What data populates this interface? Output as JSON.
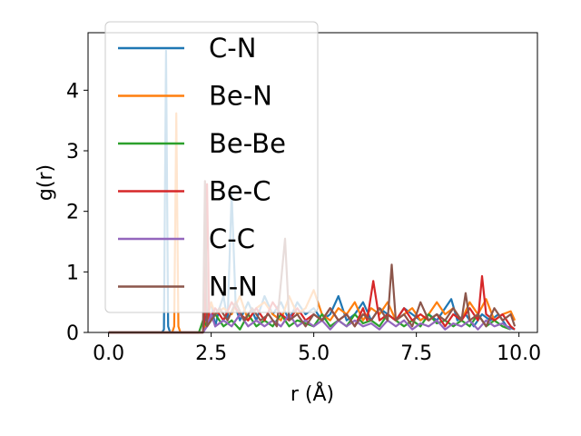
{
  "chart_data": {
    "type": "line",
    "xlabel": "r (Å)",
    "ylabel": "g(r)",
    "xlim": [
      -0.5,
      10.45
    ],
    "ylim": [
      0,
      4.95
    ],
    "xticks": [
      0.0,
      2.5,
      5.0,
      7.5,
      10.0
    ],
    "xtick_labels": [
      "0.0",
      "2.5",
      "5.0",
      "7.5",
      "10.0"
    ],
    "yticks": [
      0,
      1,
      2,
      3,
      4
    ],
    "ytick_labels": [
      "0",
      "1",
      "2",
      "3",
      "4"
    ],
    "grid": false,
    "legend_position": "upper left",
    "series": [
      {
        "name": "C-N",
        "color": "#1f77b4",
        "points": [
          [
            0,
            0
          ],
          [
            1.3,
            0
          ],
          [
            1.35,
            0.05
          ],
          [
            1.4,
            4.65
          ],
          [
            1.45,
            0.1
          ],
          [
            1.5,
            0
          ],
          [
            2.3,
            0
          ],
          [
            2.4,
            0.3
          ],
          [
            2.5,
            0.5
          ],
          [
            2.6,
            0.1
          ],
          [
            2.7,
            0.4
          ],
          [
            2.8,
            0.6
          ],
          [
            2.9,
            0.2
          ],
          [
            3.0,
            2.3
          ],
          [
            3.1,
            0.4
          ],
          [
            3.2,
            0.2
          ],
          [
            3.4,
            0.5
          ],
          [
            3.6,
            0.2
          ],
          [
            3.8,
            0.6
          ],
          [
            4.0,
            0.3
          ],
          [
            4.2,
            0.5
          ],
          [
            4.4,
            0.2
          ],
          [
            4.6,
            0.5
          ],
          [
            4.8,
            0.3
          ],
          [
            5.0,
            0.4
          ],
          [
            5.2,
            0.2
          ],
          [
            5.4,
            0.3
          ],
          [
            5.6,
            0.6
          ],
          [
            5.8,
            0.2
          ],
          [
            6.0,
            0.3
          ],
          [
            6.2,
            0.5
          ],
          [
            6.4,
            0.2
          ],
          [
            6.6,
            0.4
          ],
          [
            6.8,
            0.3
          ],
          [
            7.0,
            0.2
          ],
          [
            7.2,
            0.4
          ],
          [
            7.4,
            0.3
          ],
          [
            7.6,
            0.2
          ],
          [
            7.8,
            0.3
          ],
          [
            8.0,
            0.2
          ],
          [
            8.2,
            0.4
          ],
          [
            8.35,
            0.55
          ],
          [
            8.5,
            0.2
          ],
          [
            8.7,
            0.3
          ],
          [
            8.9,
            0.1
          ],
          [
            9.1,
            0.3
          ],
          [
            9.3,
            0.2
          ],
          [
            9.5,
            0.3
          ],
          [
            9.7,
            0.1
          ],
          [
            9.9,
            0.05
          ]
        ]
      },
      {
        "name": "Be-N",
        "color": "#ff7f0e",
        "points": [
          [
            0,
            0
          ],
          [
            1.55,
            0
          ],
          [
            1.6,
            0.1
          ],
          [
            1.65,
            3.62
          ],
          [
            1.7,
            0.1
          ],
          [
            1.75,
            0
          ],
          [
            2.3,
            0
          ],
          [
            2.4,
            0.2
          ],
          [
            2.5,
            0.5
          ],
          [
            2.6,
            0.3
          ],
          [
            2.8,
            0.4
          ],
          [
            3.0,
            0.3
          ],
          [
            3.2,
            0.6
          ],
          [
            3.4,
            0.2
          ],
          [
            3.6,
            0.4
          ],
          [
            3.8,
            0.5
          ],
          [
            4.0,
            0.3
          ],
          [
            4.2,
            0.2
          ],
          [
            4.4,
            0.6
          ],
          [
            4.6,
            0.3
          ],
          [
            4.8,
            0.4
          ],
          [
            5.0,
            0.7
          ],
          [
            5.2,
            0.3
          ],
          [
            5.4,
            0.2
          ],
          [
            5.6,
            0.4
          ],
          [
            5.8,
            0.3
          ],
          [
            6.0,
            0.5
          ],
          [
            6.2,
            0.2
          ],
          [
            6.4,
            0.4
          ],
          [
            6.6,
            0.3
          ],
          [
            6.8,
            0.5
          ],
          [
            7.0,
            0.2
          ],
          [
            7.2,
            0.3
          ],
          [
            7.4,
            0.4
          ],
          [
            7.6,
            0.2
          ],
          [
            7.8,
            0.3
          ],
          [
            8.0,
            0.5
          ],
          [
            8.2,
            0.3
          ],
          [
            8.4,
            0.4
          ],
          [
            8.6,
            0.2
          ],
          [
            8.8,
            0.5
          ],
          [
            9.0,
            0.3
          ],
          [
            9.2,
            0.55
          ],
          [
            9.4,
            0.2
          ],
          [
            9.6,
            0.3
          ],
          [
            9.8,
            0.35
          ],
          [
            9.9,
            0.2
          ]
        ]
      },
      {
        "name": "Be-Be",
        "color": "#2ca02c",
        "points": [
          [
            0,
            0
          ],
          [
            2.2,
            0
          ],
          [
            2.3,
            0.2
          ],
          [
            2.4,
            0.1
          ],
          [
            2.6,
            0.3
          ],
          [
            2.8,
            0.1
          ],
          [
            3.0,
            0.2
          ],
          [
            3.2,
            0.05
          ],
          [
            3.4,
            0.3
          ],
          [
            3.6,
            0.1
          ],
          [
            3.8,
            0.2
          ],
          [
            4.0,
            0.1
          ],
          [
            4.2,
            0.3
          ],
          [
            4.4,
            0.1
          ],
          [
            4.6,
            0.2
          ],
          [
            4.8,
            0.15
          ],
          [
            5.0,
            0.1
          ],
          [
            5.2,
            0.3
          ],
          [
            5.4,
            0.1
          ],
          [
            5.6,
            0.2
          ],
          [
            5.8,
            0.1
          ],
          [
            6.0,
            0.3
          ],
          [
            6.2,
            0.15
          ],
          [
            6.4,
            0.2
          ],
          [
            6.6,
            0.1
          ],
          [
            6.8,
            0.3
          ],
          [
            7.0,
            0.2
          ],
          [
            7.2,
            0.1
          ],
          [
            7.4,
            0.2
          ],
          [
            7.6,
            0.1
          ],
          [
            7.8,
            0.3
          ],
          [
            8.0,
            0.15
          ],
          [
            8.2,
            0.2
          ],
          [
            8.4,
            0.1
          ],
          [
            8.6,
            0.2
          ],
          [
            8.8,
            0.1
          ],
          [
            9.0,
            0.3
          ],
          [
            9.2,
            0.1
          ],
          [
            9.4,
            0.2
          ],
          [
            9.6,
            0.1
          ],
          [
            9.8,
            0.05
          ]
        ]
      },
      {
        "name": "Be-C",
        "color": "#d62728",
        "points": [
          [
            0,
            0
          ],
          [
            2.3,
            0
          ],
          [
            2.35,
            0.3
          ],
          [
            2.4,
            2.45
          ],
          [
            2.45,
            0.2
          ],
          [
            2.6,
            0.4
          ],
          [
            2.8,
            0.2
          ],
          [
            3.0,
            0.5
          ],
          [
            3.2,
            0.3
          ],
          [
            3.4,
            0.2
          ],
          [
            3.6,
            0.4
          ],
          [
            3.8,
            0.2
          ],
          [
            4.0,
            0.5
          ],
          [
            4.2,
            0.3
          ],
          [
            4.4,
            0.2
          ],
          [
            4.6,
            0.4
          ],
          [
            4.8,
            0.2
          ],
          [
            5.0,
            0.3
          ],
          [
            5.2,
            0.2
          ],
          [
            5.4,
            0.4
          ],
          [
            5.6,
            0.2
          ],
          [
            5.8,
            0.3
          ],
          [
            6.0,
            0.1
          ],
          [
            6.2,
            0.4
          ],
          [
            6.3,
            0.2
          ],
          [
            6.45,
            0.85
          ],
          [
            6.6,
            0.2
          ],
          [
            6.8,
            0.3
          ],
          [
            7.0,
            0.2
          ],
          [
            7.2,
            0.4
          ],
          [
            7.4,
            0.2
          ],
          [
            7.6,
            0.3
          ],
          [
            7.8,
            0.2
          ],
          [
            8.0,
            0.3
          ],
          [
            8.2,
            0.1
          ],
          [
            8.4,
            0.3
          ],
          [
            8.6,
            0.2
          ],
          [
            8.8,
            0.4
          ],
          [
            9.0,
            0.2
          ],
          [
            9.1,
            0.93
          ],
          [
            9.2,
            0.3
          ],
          [
            9.4,
            0.2
          ],
          [
            9.6,
            0.3
          ],
          [
            9.8,
            0.1
          ],
          [
            9.9,
            0.05
          ]
        ]
      },
      {
        "name": "C-C",
        "color": "#9467bd",
        "points": [
          [
            0,
            0
          ],
          [
            2.3,
            0
          ],
          [
            2.4,
            0.1
          ],
          [
            2.5,
            0.3
          ],
          [
            2.6,
            0.1
          ],
          [
            2.8,
            0.2
          ],
          [
            3.0,
            0.1
          ],
          [
            3.2,
            0.3
          ],
          [
            3.4,
            0.1
          ],
          [
            3.6,
            0.2
          ],
          [
            3.8,
            0.1
          ],
          [
            4.0,
            0.2
          ],
          [
            4.2,
            0.1
          ],
          [
            4.4,
            0.3
          ],
          [
            4.6,
            0.1
          ],
          [
            4.8,
            0.2
          ],
          [
            5.0,
            0.1
          ],
          [
            5.2,
            0.2
          ],
          [
            5.4,
            0.05
          ],
          [
            5.6,
            0.2
          ],
          [
            5.8,
            0.1
          ],
          [
            6.0,
            0.2
          ],
          [
            6.2,
            0.1
          ],
          [
            6.4,
            0.15
          ],
          [
            6.6,
            0.05
          ],
          [
            6.8,
            0.2
          ],
          [
            7.0,
            0.1
          ],
          [
            7.2,
            0.2
          ],
          [
            7.4,
            0.05
          ],
          [
            7.6,
            0.15
          ],
          [
            7.8,
            0.1
          ],
          [
            8.0,
            0.2
          ],
          [
            8.2,
            0.05
          ],
          [
            8.4,
            0.15
          ],
          [
            8.6,
            0.1
          ],
          [
            8.8,
            0.2
          ],
          [
            9.0,
            0.05
          ],
          [
            9.2,
            0.2
          ],
          [
            9.4,
            0.1
          ],
          [
            9.6,
            0.15
          ],
          [
            9.8,
            0.05
          ]
        ]
      },
      {
        "name": "N-N",
        "color": "#8c564b",
        "points": [
          [
            0,
            0
          ],
          [
            2.3,
            0
          ],
          [
            2.35,
            2.5
          ],
          [
            2.4,
            0.1
          ],
          [
            2.5,
            0.2
          ],
          [
            2.7,
            0.4
          ],
          [
            2.9,
            0.2
          ],
          [
            3.1,
            0.5
          ],
          [
            3.3,
            0.2
          ],
          [
            3.5,
            0.4
          ],
          [
            3.7,
            0.2
          ],
          [
            3.9,
            0.3
          ],
          [
            4.1,
            0.1
          ],
          [
            4.3,
            1.55
          ],
          [
            4.4,
            0.2
          ],
          [
            4.6,
            0.3
          ],
          [
            4.8,
            0.1
          ],
          [
            5.0,
            0.3
          ],
          [
            5.2,
            0.2
          ],
          [
            5.4,
            0.4
          ],
          [
            5.6,
            0.2
          ],
          [
            5.8,
            0.3
          ],
          [
            6.0,
            0.1
          ],
          [
            6.2,
            0.3
          ],
          [
            6.4,
            0.2
          ],
          [
            6.6,
            0.4
          ],
          [
            6.8,
            0.2
          ],
          [
            6.9,
            1.12
          ],
          [
            7.0,
            0.2
          ],
          [
            7.2,
            0.3
          ],
          [
            7.4,
            0.1
          ],
          [
            7.6,
            0.5
          ],
          [
            7.8,
            0.2
          ],
          [
            8.0,
            0.3
          ],
          [
            8.2,
            0.2
          ],
          [
            8.4,
            0.4
          ],
          [
            8.6,
            0.2
          ],
          [
            8.7,
            0.65
          ],
          [
            8.8,
            0.2
          ],
          [
            9.0,
            0.3
          ],
          [
            9.2,
            0.1
          ],
          [
            9.4,
            0.4
          ],
          [
            9.6,
            0.2
          ],
          [
            9.8,
            0.3
          ],
          [
            9.9,
            0.1
          ]
        ]
      }
    ]
  }
}
